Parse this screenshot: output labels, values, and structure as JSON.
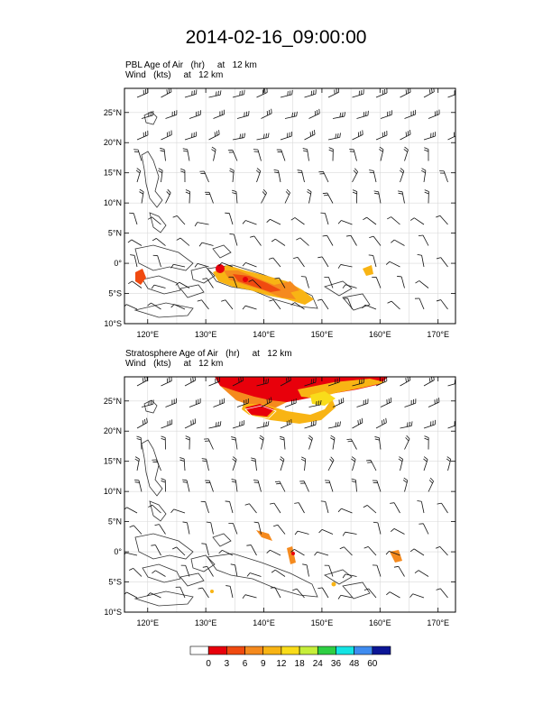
{
  "title": "2014-02-16_09:00:00",
  "panels": [
    {
      "id": "pbl",
      "line1": "PBL Age of Air   (hr)     at   12 km",
      "line2": "Wind   (kts)     at   12 km"
    },
    {
      "id": "strat",
      "line1": "Stratosphere Age of Air   (hr)     at   12 km",
      "line2": "Wind   (kts)     at   12 km"
    }
  ],
  "lat_ticks": [
    "25°N",
    "20°N",
    "15°N",
    "10°N",
    "5°N",
    "0°",
    "5°S",
    "10°S"
  ],
  "lon_ticks": [
    "120°E",
    "130°E",
    "140°E",
    "150°E",
    "160°E",
    "170°E"
  ],
  "colorbar": {
    "labels": [
      "0",
      "3",
      "6",
      "9",
      "12",
      "18",
      "24",
      "36",
      "48",
      "60"
    ],
    "colors": [
      "#ffffff",
      "#e8000b",
      "#f04a10",
      "#f58a1e",
      "#f8b414",
      "#f9dc1a",
      "#c6ee3a",
      "#2ecf43",
      "#14e4e4",
      "#3f8cf0",
      "#0c1696"
    ]
  },
  "map_data": {
    "type": "map",
    "lon_range": [
      116,
      173
    ],
    "lat_range": [
      -10,
      29
    ],
    "contour_levels_hr": [
      0,
      3,
      6,
      9,
      12,
      18,
      24,
      36,
      48,
      60
    ]
  }
}
